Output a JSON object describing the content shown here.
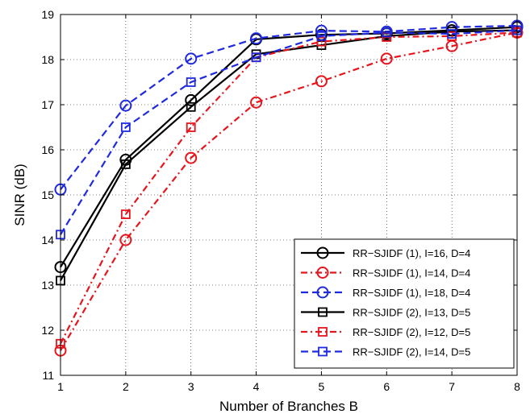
{
  "chart_data": {
    "type": "line",
    "title": "",
    "xlabel": "Number of Branches B",
    "ylabel": "SINR (dB)",
    "xlim": [
      1,
      8
    ],
    "ylim": [
      11,
      19
    ],
    "xticks": [
      "1",
      "2",
      "3",
      "4",
      "5",
      "6",
      "7",
      "8"
    ],
    "yticks": [
      "11",
      "12",
      "13",
      "14",
      "15",
      "16",
      "17",
      "18",
      "19"
    ],
    "x": [
      1,
      2,
      3,
      4,
      5,
      6,
      7,
      8
    ],
    "grid": "on",
    "legend_position": "lower-right",
    "series": [
      {
        "name": "RR−SJIDF (1), I=16, D=4",
        "color": "#000000",
        "line": "solid",
        "marker": "circle",
        "values": [
          13.4,
          15.78,
          17.1,
          18.45,
          18.55,
          18.58,
          18.65,
          18.72
        ]
      },
      {
        "name": "RR−SJIDF (1), I=14, D=4",
        "color": "#e8141c",
        "line": "dashdot",
        "marker": "circle",
        "values": [
          11.55,
          14.0,
          15.82,
          17.05,
          17.52,
          18.02,
          18.3,
          18.6
        ]
      },
      {
        "name": "RR−SJIDF (1), I=18, D=4",
        "color": "#1f2ae0",
        "line": "dashed",
        "marker": "circle",
        "values": [
          15.12,
          16.98,
          18.02,
          18.47,
          18.64,
          18.62,
          18.72,
          18.75
        ]
      },
      {
        "name": "RR−SJIDF (2), I=13, D=5",
        "color": "#000000",
        "line": "solid",
        "marker": "square",
        "values": [
          13.1,
          15.68,
          16.95,
          18.12,
          18.32,
          18.52,
          18.62,
          18.65
        ]
      },
      {
        "name": "RR−SJIDF (2), I=12, D=5",
        "color": "#e8141c",
        "line": "dashdot",
        "marker": "square",
        "values": [
          11.7,
          14.57,
          16.5,
          18.05,
          18.4,
          18.5,
          18.52,
          18.6
        ]
      },
      {
        "name": "RR−SJIDF (2), I=14, D=5",
        "color": "#1f2ae0",
        "line": "dashed",
        "marker": "square",
        "values": [
          14.12,
          16.5,
          17.5,
          18.05,
          18.52,
          18.6,
          18.57,
          18.65
        ]
      }
    ]
  }
}
